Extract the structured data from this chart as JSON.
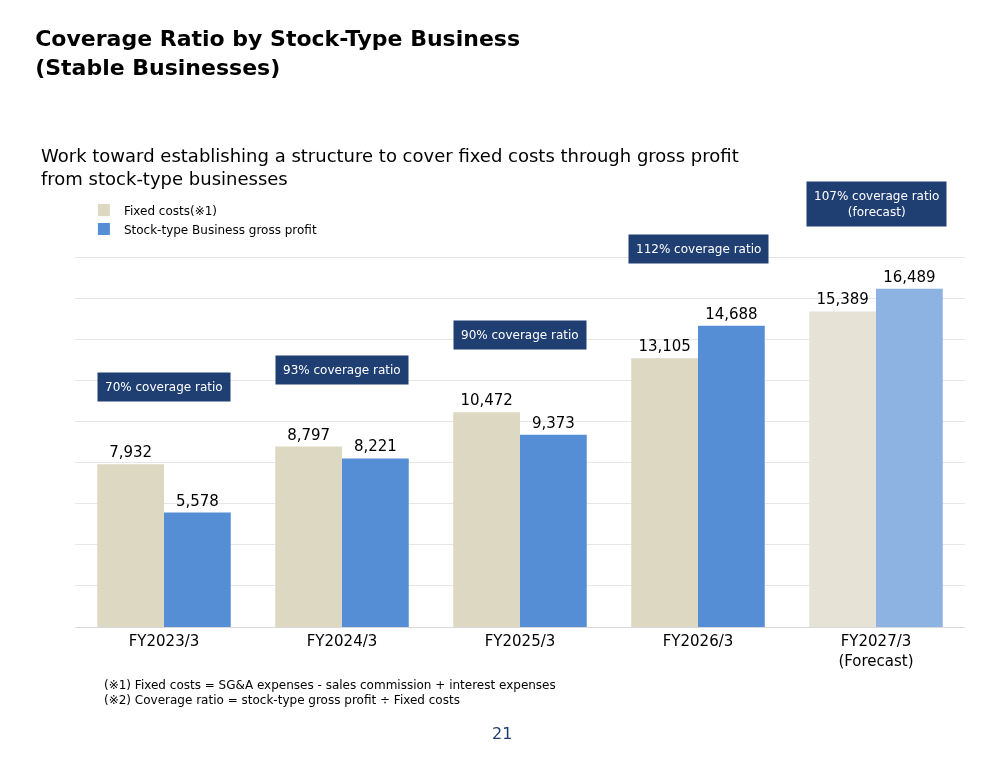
{
  "chart_data": {
    "type": "bar",
    "title": "Coverage Ratio by Stock-Type Business\n(Stable Businesses)",
    "subtitle": "Work toward establishing a structure to cover fixed costs through gross profit\nfrom stock-type businesses",
    "categories": [
      "FY2023/3",
      "FY2024/3",
      "FY2025/3",
      "FY2026/3",
      "FY2027/3\n(Forecast)"
    ],
    "series": [
      {
        "name": "Fixed costs(※1)",
        "colors": [
          "#ddd8c2",
          "#ddd8c2",
          "#ddd8c2",
          "#ddd8c2",
          "#e6e2d5"
        ],
        "values": [
          7932,
          8797,
          10472,
          13105,
          15389
        ],
        "value_labels": [
          "7,932",
          "8,797",
          "10,472",
          "13,105",
          "15,389"
        ]
      },
      {
        "name": "Stock-type Business gross profit",
        "colors": [
          "#558ed5",
          "#558ed5",
          "#558ed5",
          "#558ed5",
          "#8db3e2"
        ],
        "values": [
          5578,
          8221,
          9373,
          14688,
          16489
        ],
        "value_labels": [
          "5,578",
          "8,221",
          "9,373",
          "14,688",
          "16,489"
        ]
      }
    ],
    "grid": "y",
    "tick_labels": "x",
    "legend": "top left",
    "annotations": [
      "70% coverage ratio",
      "93% coverage ratio",
      "90% coverage ratio",
      "112% coverage ratio",
      "107% coverage ratio\n(forecast)",
      "(※1) Fixed costs = SG&A expenses - sales commission + interest expenses",
      "(※2) Coverage ratio = stock-type gross profit ÷ Fixed costs",
      "21"
    ]
  }
}
